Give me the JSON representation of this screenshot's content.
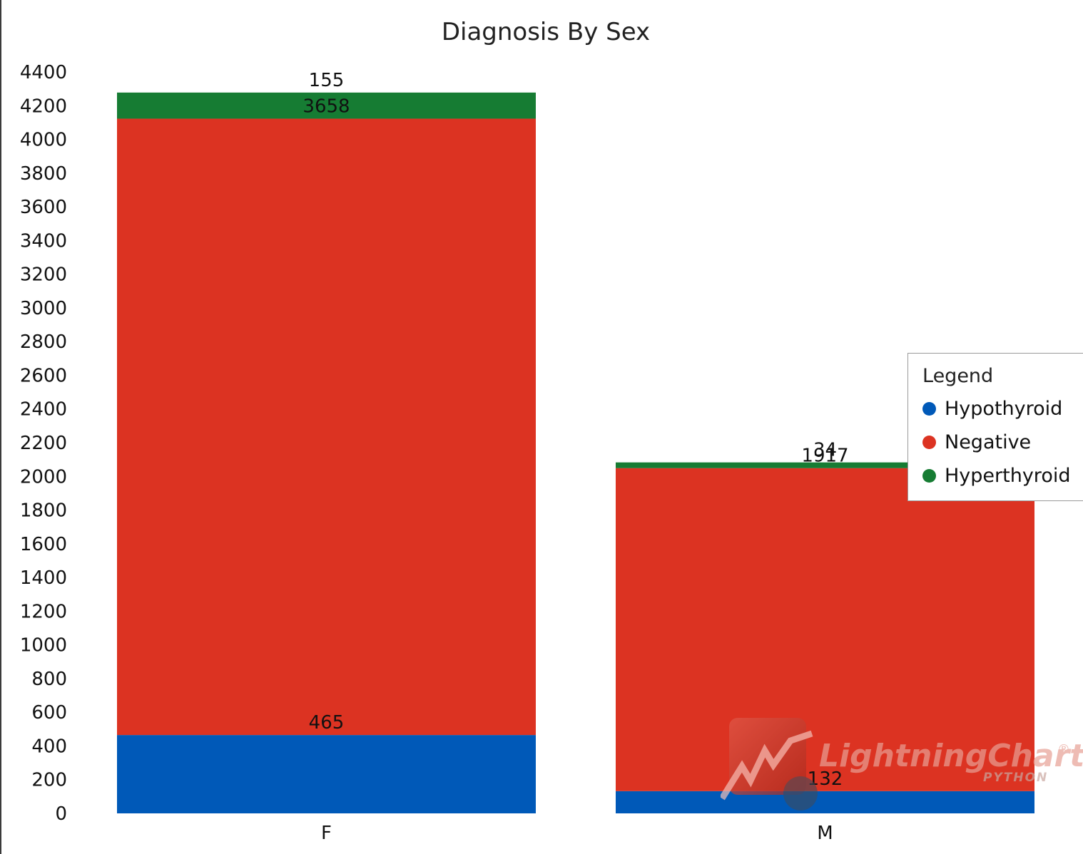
{
  "chart_data": {
    "type": "bar",
    "stacked": true,
    "title": "Diagnosis By Sex",
    "xlabel": "",
    "ylabel": "",
    "categories": [
      "F",
      "M"
    ],
    "series": [
      {
        "name": "Hypothyroid",
        "color": "#0059b8",
        "values": [
          465,
          132
        ]
      },
      {
        "name": "Negative",
        "color": "#dc3322",
        "values": [
          3658,
          1917
        ]
      },
      {
        "name": "Hyperthyroid",
        "color": "#167c33",
        "values": [
          155,
          34
        ]
      }
    ],
    "ylim": [
      0,
      4400
    ],
    "yticks": [
      0,
      200,
      400,
      600,
      800,
      1000,
      1200,
      1400,
      1600,
      1800,
      2000,
      2200,
      2400,
      2600,
      2800,
      3000,
      3200,
      3400,
      3600,
      3800,
      4000,
      4200,
      4400
    ],
    "grid": false,
    "legend_position": "right"
  },
  "legend": {
    "title": "Legend",
    "items": [
      {
        "label": "Hypothyroid",
        "color": "#0059b8"
      },
      {
        "label": "Negative",
        "color": "#dc3322"
      },
      {
        "label": "Hyperthyroid",
        "color": "#167c33"
      }
    ]
  },
  "watermark": {
    "brand": "LightningChart",
    "sub": "PYTHON",
    "mark": "®"
  }
}
